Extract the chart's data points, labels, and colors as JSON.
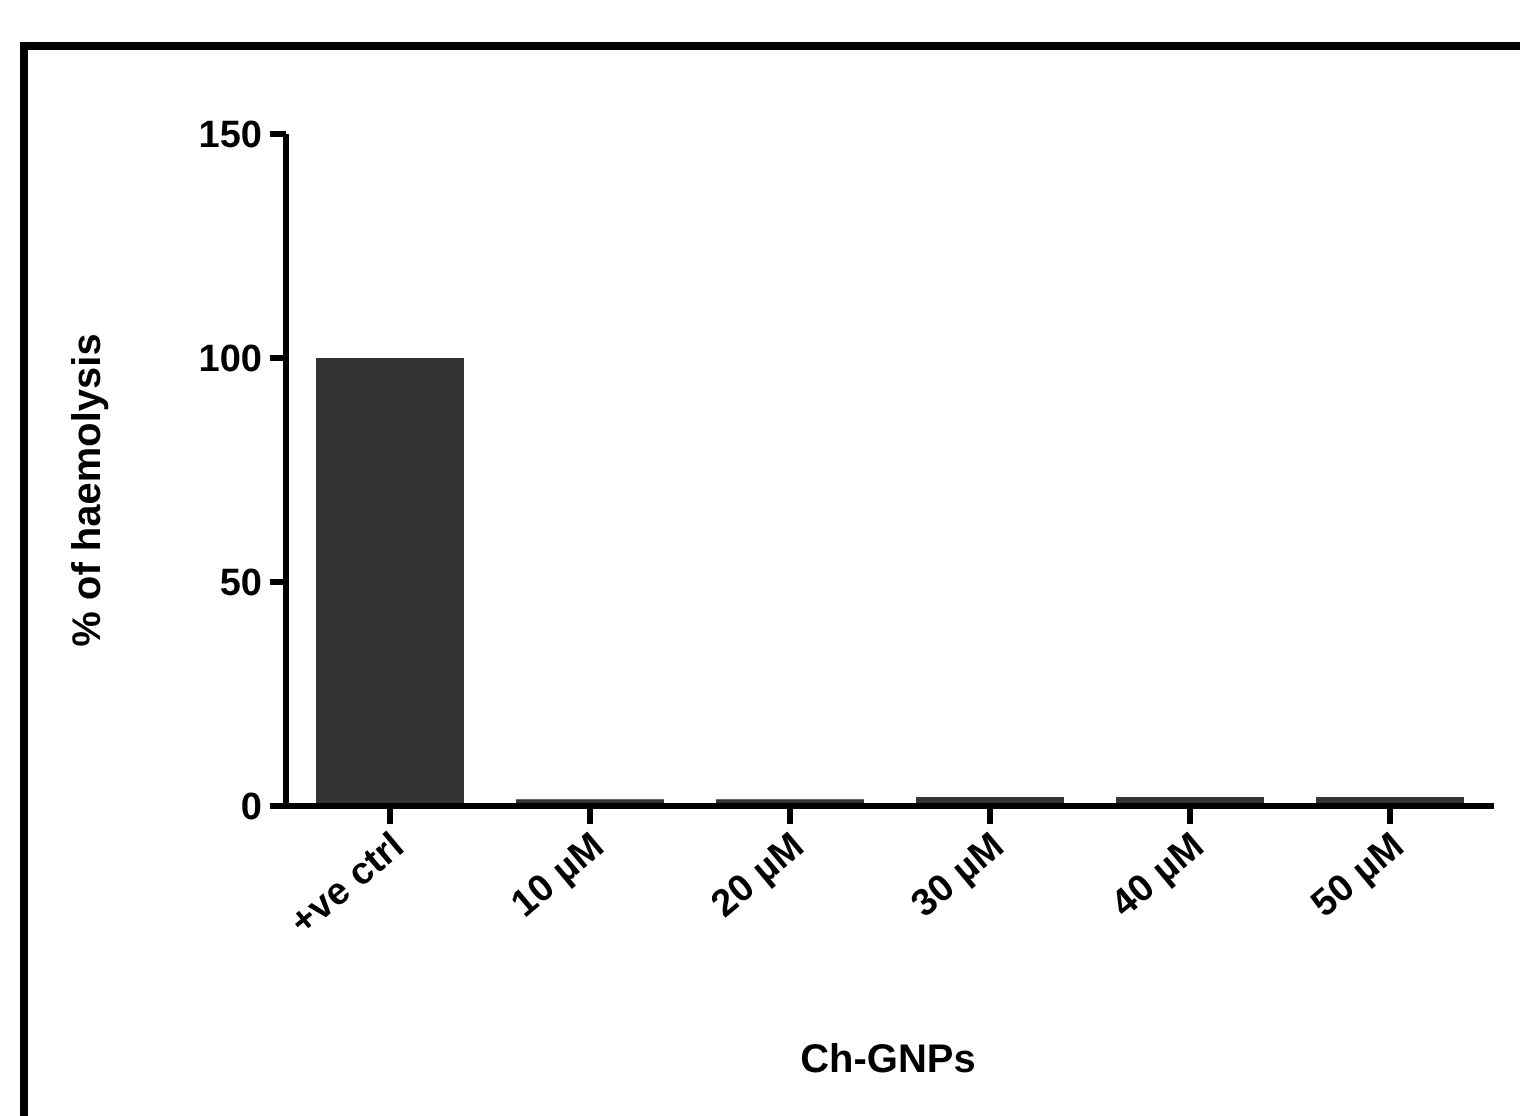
{
  "chart_data": {
    "type": "bar",
    "xlabel": "Ch-GNPs",
    "ylabel": "% of haemolysis",
    "categories": [
      "+ve ctrl",
      "10 µM",
      "20 µM",
      "30 µM",
      "40 µM",
      "50 µM"
    ],
    "values": [
      100,
      1.5,
      1.5,
      2,
      2,
      2
    ],
    "color": "#333333",
    "ylim": [
      0,
      150
    ],
    "yticks": [
      0,
      50,
      100,
      150
    ],
    "grid": false
  }
}
